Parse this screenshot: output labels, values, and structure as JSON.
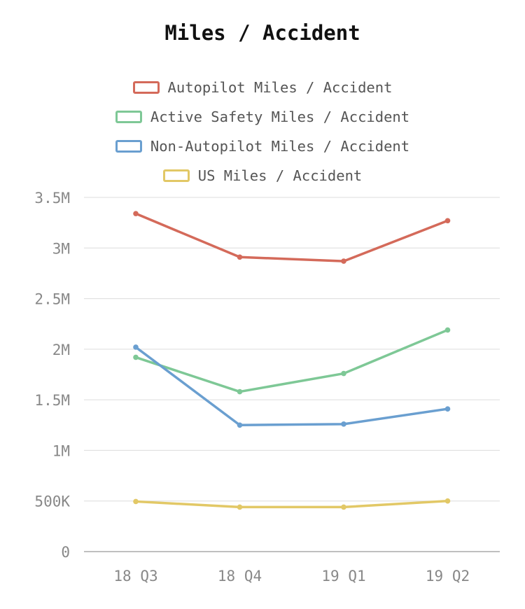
{
  "chart_data": {
    "type": "line",
    "title": "Miles / Accident",
    "categories": [
      "18 Q3",
      "18 Q4",
      "19 Q1",
      "19 Q2"
    ],
    "series": [
      {
        "name": "Autopilot Miles / Accident",
        "color": "#d46a5a",
        "values": [
          3340000,
          2910000,
          2870000,
          3270000
        ]
      },
      {
        "name": "Active Safety Miles / Accident",
        "color": "#7ec896",
        "values": [
          1920000,
          1580000,
          1760000,
          2190000
        ]
      },
      {
        "name": "Non-Autopilot Miles / Accident",
        "color": "#6a9fd0",
        "values": [
          2020000,
          1250000,
          1260000,
          1410000
        ]
      },
      {
        "name": "US Miles / Accident",
        "color": "#e2c866",
        "values": [
          495000,
          440000,
          440000,
          500000
        ]
      }
    ],
    "ylim": [
      0,
      3500000
    ],
    "yticks": [
      {
        "value": 0,
        "label": "0"
      },
      {
        "value": 500000,
        "label": "500K"
      },
      {
        "value": 1000000,
        "label": "1M"
      },
      {
        "value": 1500000,
        "label": "1.5M"
      },
      {
        "value": 2000000,
        "label": "2M"
      },
      {
        "value": 2500000,
        "label": "2.5M"
      },
      {
        "value": 3000000,
        "label": "3M"
      },
      {
        "value": 3500000,
        "label": "3.5M"
      }
    ],
    "grid": true,
    "legend_position": "top"
  }
}
